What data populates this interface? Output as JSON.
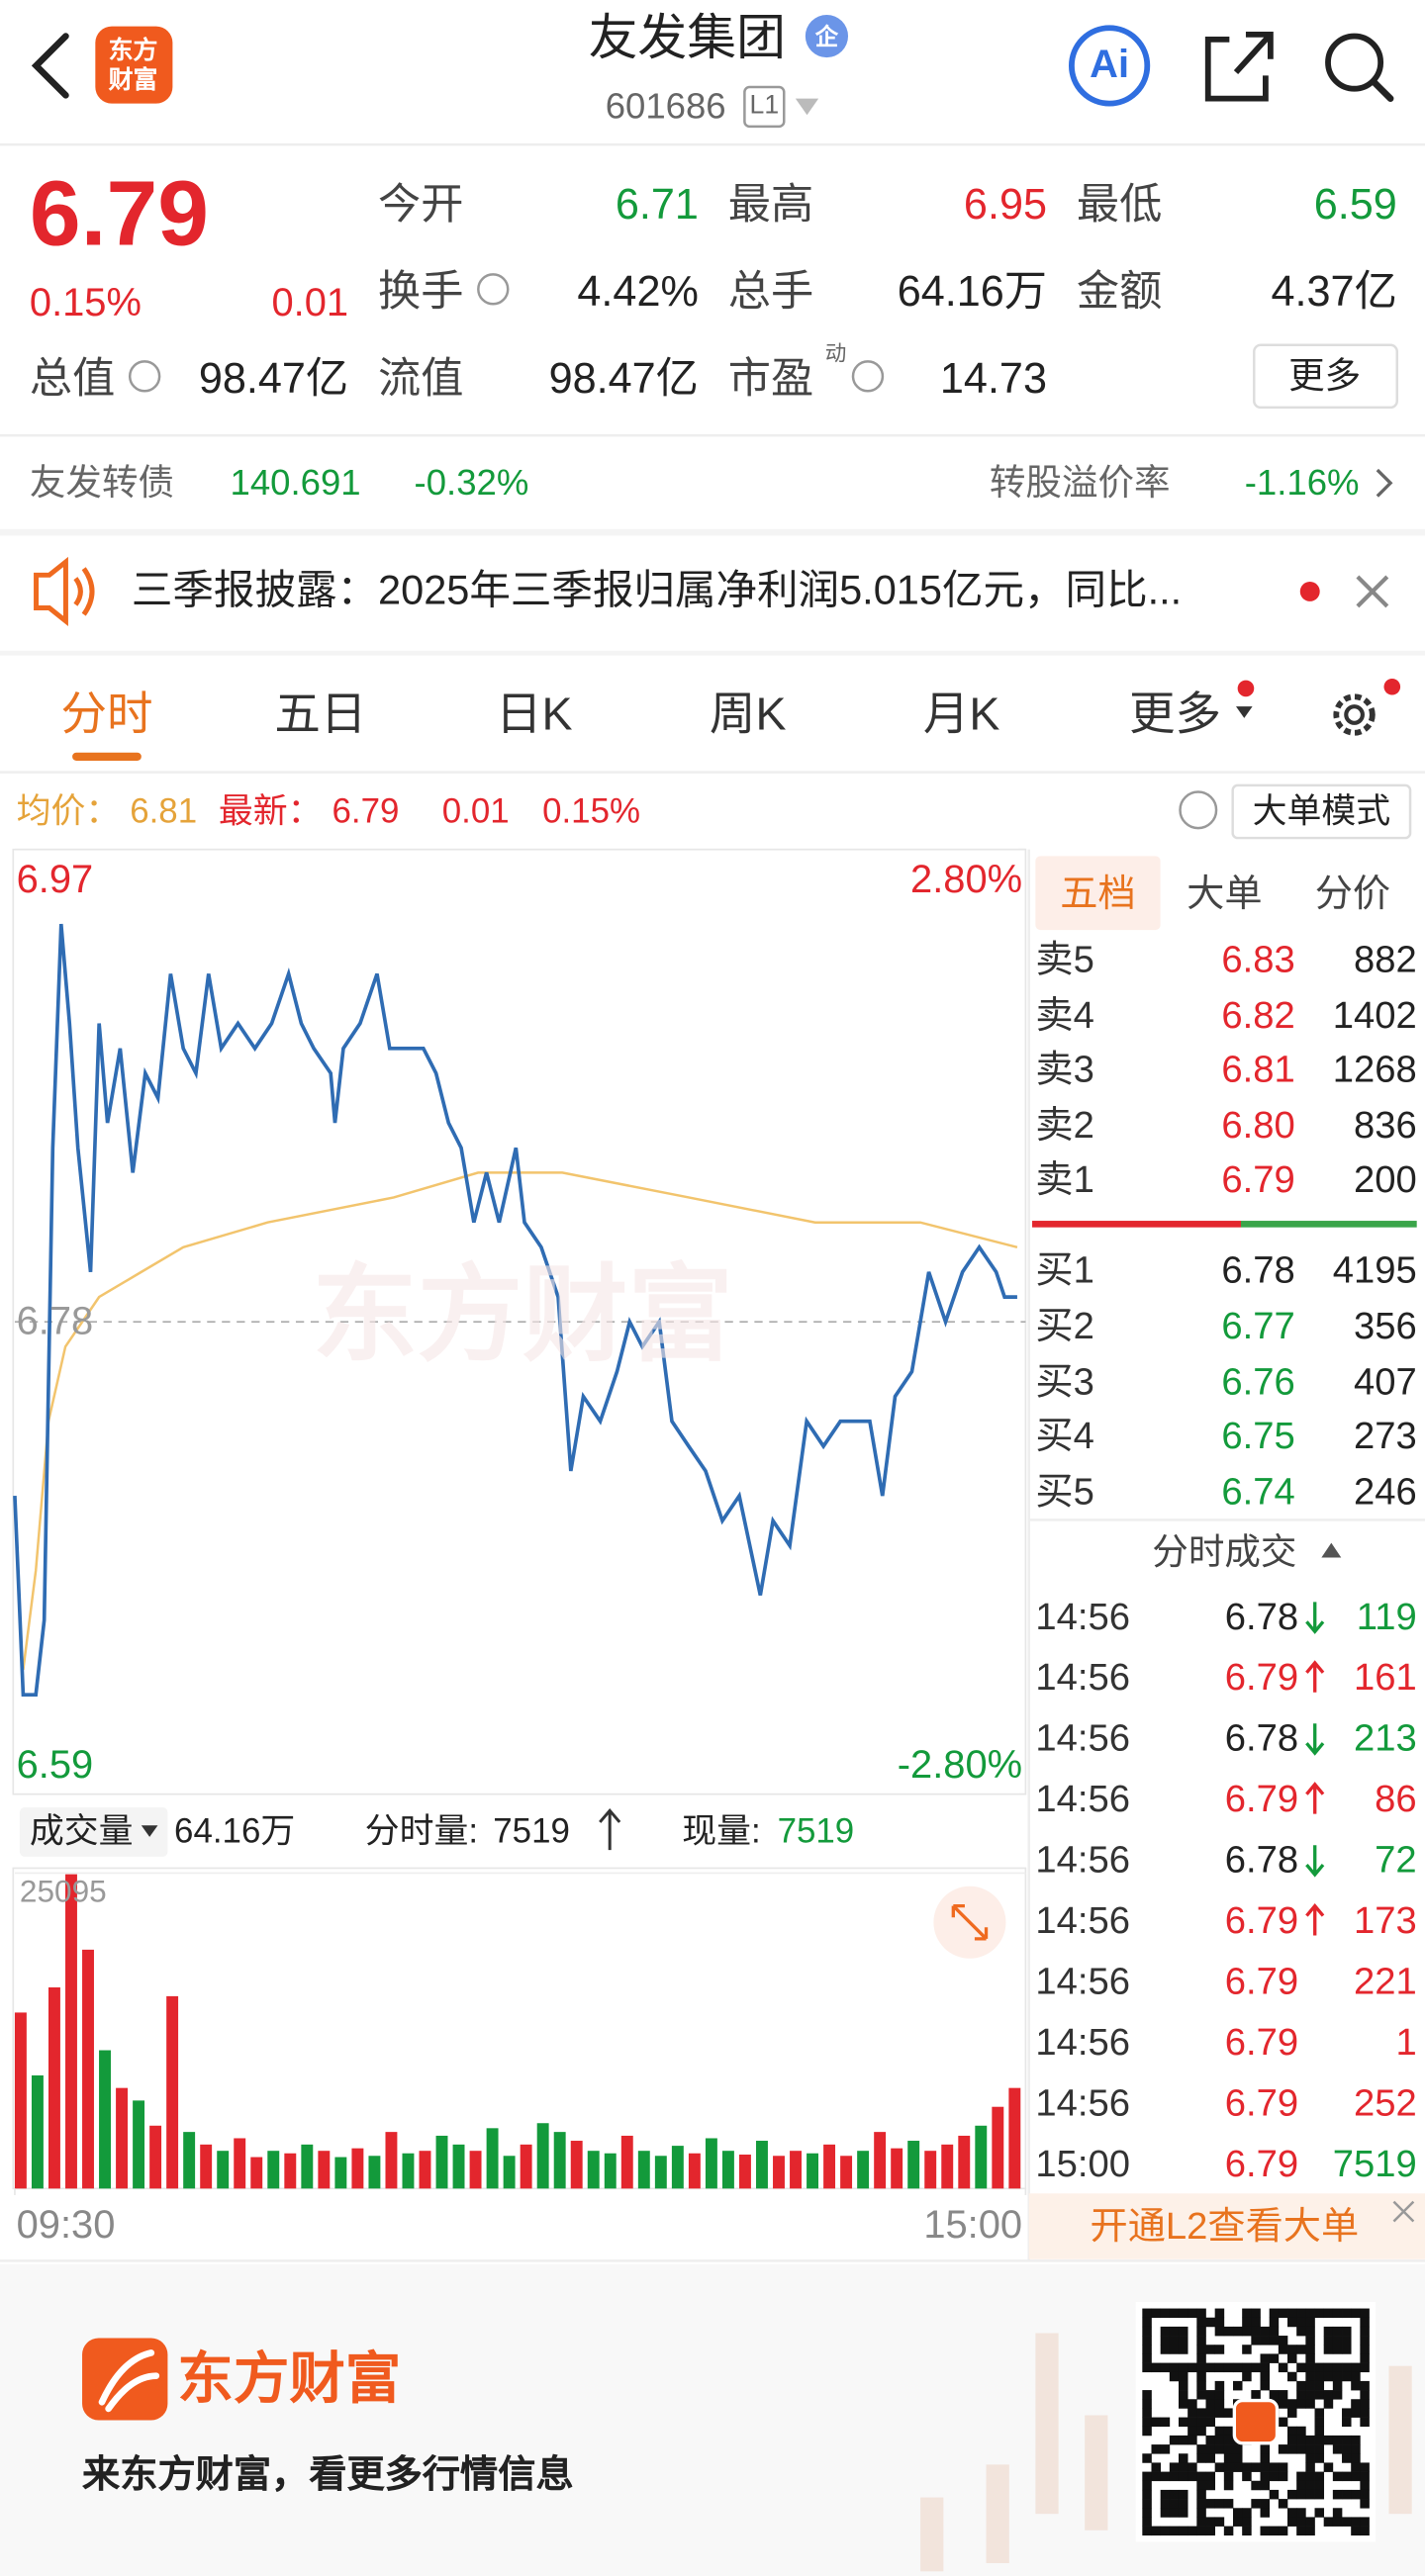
{
  "header": {
    "logo": [
      "东方",
      "财富"
    ],
    "title": "友发集团",
    "badge": "企",
    "code": "601686",
    "level": "L1",
    "ai": "Ai"
  },
  "quote": {
    "price": "6.79",
    "pct": "0.15%",
    "change": "0.01",
    "stats": [
      {
        "label": "今开",
        "value": "6.71"
      },
      {
        "label": "最高",
        "value": "6.95"
      },
      {
        "label": "最低",
        "value": "6.59"
      },
      {
        "label": "换手",
        "value": "4.42%"
      },
      {
        "label": "总手",
        "value": "64.16万"
      },
      {
        "label": "金额",
        "value": "4.37亿"
      },
      {
        "label": "总值",
        "value": "98.47亿"
      },
      {
        "label": "流值",
        "value": "98.47亿"
      },
      {
        "label": "市盈",
        "sup": "动",
        "value": "14.73"
      }
    ],
    "more": "更多"
  },
  "bond": {
    "name": "友发转债",
    "price": "140.691",
    "pct": "-0.32%",
    "premium_label": "转股溢价率",
    "premium": "-1.16%"
  },
  "notice": {
    "text": "三季报披露：2025年三季报归属净利润5.015亿元，同比..."
  },
  "tabs": [
    "分时",
    "五日",
    "日K",
    "周K",
    "月K",
    "更多"
  ],
  "info": {
    "avg_label": "均价：",
    "avg": "6.81",
    "last_label": "最新：",
    "last": "6.79",
    "change": "0.01",
    "pct": "0.15%",
    "mode": "大单模式"
  },
  "watermark": "东方财富",
  "volume_info": {
    "label": "成交量",
    "total": "64.16万",
    "tick_label": "分时量:",
    "tick": "7519",
    "now_label": "现量:",
    "now": "7519"
  },
  "chart_data": [
    {
      "type": "line",
      "xlim": [
        0,
        240
      ],
      "ylim": [
        6.59,
        6.97
      ],
      "yticks": [
        6.97,
        6.78,
        6.59
      ],
      "y2lim": [
        -2.8,
        2.8
      ],
      "y2ticks": [
        {
          "value": 2.8,
          "label": "2.80%"
        },
        {
          "value": -2.8,
          "label": "-2.80%"
        }
      ],
      "series": [
        {
          "color": "#2f6cb3",
          "x": [
            0,
            2,
            5,
            7,
            9,
            11,
            13,
            15,
            18,
            20,
            22,
            25,
            28,
            31,
            34,
            37,
            40,
            43,
            46,
            49,
            53,
            57,
            61,
            65,
            68,
            71,
            75,
            76,
            78,
            82,
            86,
            89,
            93,
            97,
            100,
            103,
            106,
            109,
            112,
            115,
            119,
            121,
            125,
            129,
            132,
            135,
            139,
            143,
            146,
            149,
            153,
            156,
            160,
            164,
            168,
            172,
            177,
            180,
            184,
            188,
            192,
            196,
            199,
            203,
            206,
            209,
            213,
            217,
            221,
            225,
            229,
            233,
            235,
            238
          ],
          "values": [
            6.71,
            6.63,
            6.63,
            6.66,
            6.85,
            6.94,
            6.9,
            6.85,
            6.8,
            6.9,
            6.86,
            6.89,
            6.84,
            6.88,
            6.87,
            6.92,
            6.89,
            6.88,
            6.92,
            6.89,
            6.9,
            6.89,
            6.9,
            6.92,
            6.9,
            6.89,
            6.88,
            6.86,
            6.89,
            6.9,
            6.92,
            6.89,
            6.89,
            6.89,
            6.88,
            6.86,
            6.85,
            6.82,
            6.84,
            6.82,
            6.85,
            6.82,
            6.81,
            6.79,
            6.72,
            6.75,
            6.74,
            6.76,
            6.78,
            6.77,
            6.78,
            6.74,
            6.73,
            6.72,
            6.7,
            6.71,
            6.67,
            6.7,
            6.69,
            6.74,
            6.73,
            6.74,
            6.74,
            6.74,
            6.71,
            6.75,
            6.76,
            6.8,
            6.78,
            6.8,
            6.81,
            6.8,
            6.79,
            6.79
          ]
        },
        {
          "color": "#f2c46d",
          "x": [
            2,
            5,
            8,
            12,
            20,
            30,
            40,
            60,
            90,
            110,
            130,
            160,
            190,
            215,
            238
          ],
          "values": [
            6.64,
            6.68,
            6.74,
            6.77,
            6.79,
            6.8,
            6.81,
            6.82,
            6.83,
            6.84,
            6.84,
            6.83,
            6.82,
            6.82,
            6.81
          ]
        }
      ]
    },
    {
      "type": "bar",
      "xlim": [
        0,
        240
      ],
      "xticks": [
        {
          "value": 0,
          "label": "09:30"
        },
        {
          "value": 240,
          "label": "15:00"
        }
      ],
      "ylim": [
        0,
        25095
      ],
      "yticks": [
        25095
      ],
      "x": [
        0,
        4,
        8,
        12,
        16,
        20,
        24,
        28,
        32,
        36,
        40,
        44,
        48,
        52,
        56,
        60,
        64,
        68,
        72,
        76,
        80,
        84,
        88,
        92,
        96,
        100,
        104,
        108,
        112,
        116,
        120,
        124,
        128,
        132,
        136,
        140,
        144,
        148,
        152,
        156,
        160,
        164,
        168,
        172,
        176,
        180,
        184,
        188,
        192,
        196,
        200,
        204,
        208,
        212,
        216,
        220,
        224,
        228,
        232,
        236
      ],
      "values": [
        14000,
        9000,
        16000,
        25000,
        19000,
        11000,
        8000,
        7000,
        5000,
        15300,
        4500,
        3500,
        3000,
        4000,
        2500,
        3000,
        2800,
        3500,
        3000,
        2500,
        3200,
        2600,
        4500,
        2800,
        3000,
        4200,
        3500,
        3000,
        4800,
        2600,
        3500,
        5200,
        4500,
        3800,
        3000,
        2800,
        4200,
        3000,
        2600,
        3400,
        2800,
        4000,
        3000,
        2700,
        3800,
        2600,
        3000,
        2800,
        3500,
        2600,
        3000,
        4500,
        3200,
        3800,
        3000,
        3500,
        4200,
        5000,
        6500,
        8000
      ],
      "colors": [
        "#e3262d",
        "#139a3b",
        "#e3262d",
        "#e3262d",
        "#e3262d",
        "#139a3b",
        "#e3262d",
        "#139a3b",
        "#e3262d",
        "#e3262d",
        "#139a3b",
        "#e3262d",
        "#139a3b",
        "#e3262d",
        "#e3262d",
        "#139a3b",
        "#e3262d",
        "#139a3b",
        "#e3262d",
        "#139a3b",
        "#e3262d",
        "#139a3b",
        "#e3262d",
        "#139a3b",
        "#e3262d",
        "#139a3b",
        "#139a3b",
        "#e3262d",
        "#139a3b",
        "#139a3b",
        "#e3262d",
        "#139a3b",
        "#139a3b",
        "#e3262d",
        "#139a3b",
        "#139a3b",
        "#e3262d",
        "#139a3b",
        "#139a3b",
        "#139a3b",
        "#e3262d",
        "#139a3b",
        "#139a3b",
        "#e3262d",
        "#139a3b",
        "#e3262d",
        "#e3262d",
        "#139a3b",
        "#e3262d",
        "#e3262d",
        "#139a3b",
        "#e3262d",
        "#e3262d",
        "#139a3b",
        "#e3262d",
        "#e3262d",
        "#e3262d",
        "#139a3b",
        "#e3262d",
        "#e3262d"
      ]
    }
  ],
  "order_book": {
    "tabs": [
      "五档",
      "大单",
      "分价"
    ],
    "asks": [
      {
        "label": "卖5",
        "price": "6.83",
        "volume": "882"
      },
      {
        "label": "卖4",
        "price": "6.82",
        "volume": "1402"
      },
      {
        "label": "卖3",
        "price": "6.81",
        "volume": "1268"
      },
      {
        "label": "卖2",
        "price": "6.80",
        "volume": "836"
      },
      {
        "label": "卖1",
        "price": "6.79",
        "volume": "200"
      }
    ],
    "bids": [
      {
        "label": "买1",
        "price": "6.78",
        "volume": "4195"
      },
      {
        "label": "买2",
        "price": "6.77",
        "volume": "356"
      },
      {
        "label": "买3",
        "price": "6.76",
        "volume": "407"
      },
      {
        "label": "买4",
        "price": "6.75",
        "volume": "273"
      },
      {
        "label": "买5",
        "price": "6.74",
        "volume": "246"
      }
    ],
    "trades_title": "分时成交",
    "trades": [
      {
        "time": "14:56",
        "price": "6.78",
        "volume": "119",
        "dir": "down",
        "color": "#139a3b"
      },
      {
        "time": "14:56",
        "price": "6.79",
        "volume": "161",
        "dir": "up",
        "color": "#e3262d"
      },
      {
        "time": "14:56",
        "price": "6.78",
        "volume": "213",
        "dir": "down",
        "color": "#139a3b"
      },
      {
        "time": "14:56",
        "price": "6.79",
        "volume": "86",
        "dir": "up",
        "color": "#e3262d"
      },
      {
        "time": "14:56",
        "price": "6.78",
        "volume": "72",
        "dir": "down",
        "color": "#139a3b"
      },
      {
        "time": "14:56",
        "price": "6.79",
        "volume": "173",
        "dir": "up",
        "color": "#e3262d"
      },
      {
        "time": "14:56",
        "price": "6.79",
        "volume": "221",
        "color": "#e3262d"
      },
      {
        "time": "14:56",
        "price": "6.79",
        "volume": "1",
        "color": "#e3262d"
      },
      {
        "time": "14:56",
        "price": "6.79",
        "volume": "252",
        "color": "#e3262d"
      },
      {
        "time": "15:00",
        "price": "6.79",
        "volume": "7519",
        "color": "#139a3b"
      }
    ]
  },
  "l2": "开通L2查看大单",
  "footer": {
    "brand": "东方财富",
    "slogan": "来东方财富，看更多行情信息"
  }
}
